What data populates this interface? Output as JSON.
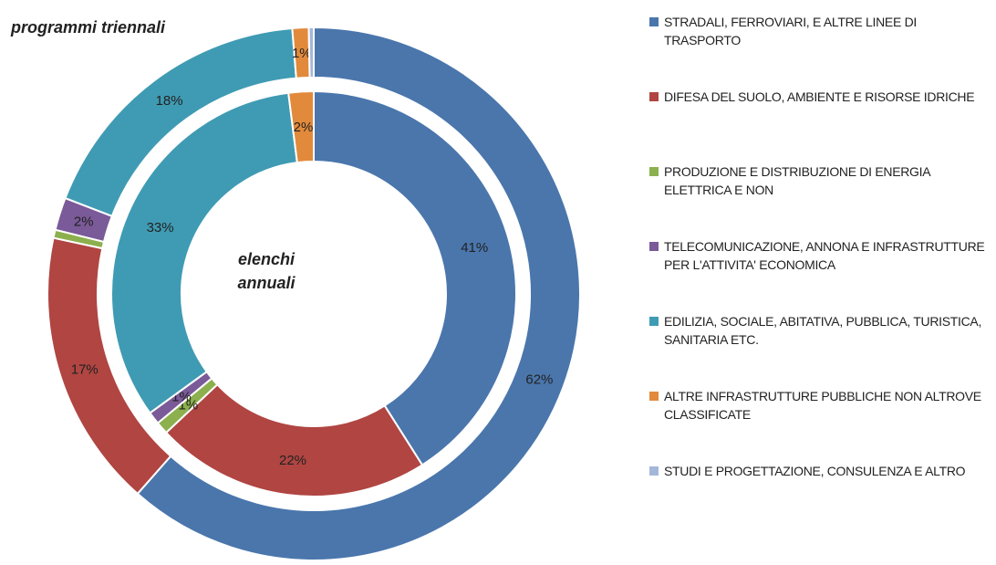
{
  "chart_data": {
    "type": "doughnut",
    "categories": [
      "STRADALI, FERROVIARI, E ALTRE LINEE DI TRASPORTO",
      "DIFESA DEL SUOLO, AMBIENTE E RISORSE IDRICHE",
      "PRODUZIONE E DISTRIBUZIONE DI ENERGIA ELETTRICA E NON",
      "TELECOMUNICAZIONE, ANNONA E INFRASTRUTTURE PER L'ATTIVITA' ECONOMICA",
      "EDILIZIA, SOCIALE, ABITATIVA, PUBBLICA, TURISTICA, SANITARIA ETC.",
      "ALTRE INFRASTRUTTURE PUBBLICHE NON ALTROVE CLASSIFICATE",
      "STUDI E PROGETTAZIONE, CONSULENZA E ALTRO"
    ],
    "colors": [
      "#4a76ac",
      "#b04542",
      "#8cb04d",
      "#7a5a98",
      "#3f9bb3",
      "#e28a3b",
      "#a3b7d9"
    ],
    "series": [
      {
        "name": "programmi triennali",
        "values": [
          62,
          17,
          0.5,
          2,
          18,
          1,
          0.3
        ],
        "value_labels": [
          "62%",
          "17%",
          null,
          "2%",
          "18%",
          "1%",
          null
        ]
      },
      {
        "name": "elenchi annuali",
        "values": [
          41,
          22,
          1,
          1,
          33,
          2,
          0
        ],
        "value_labels": [
          "41%",
          "22%",
          "1%",
          "1%",
          "33%",
          "2%",
          null
        ]
      }
    ]
  }
}
